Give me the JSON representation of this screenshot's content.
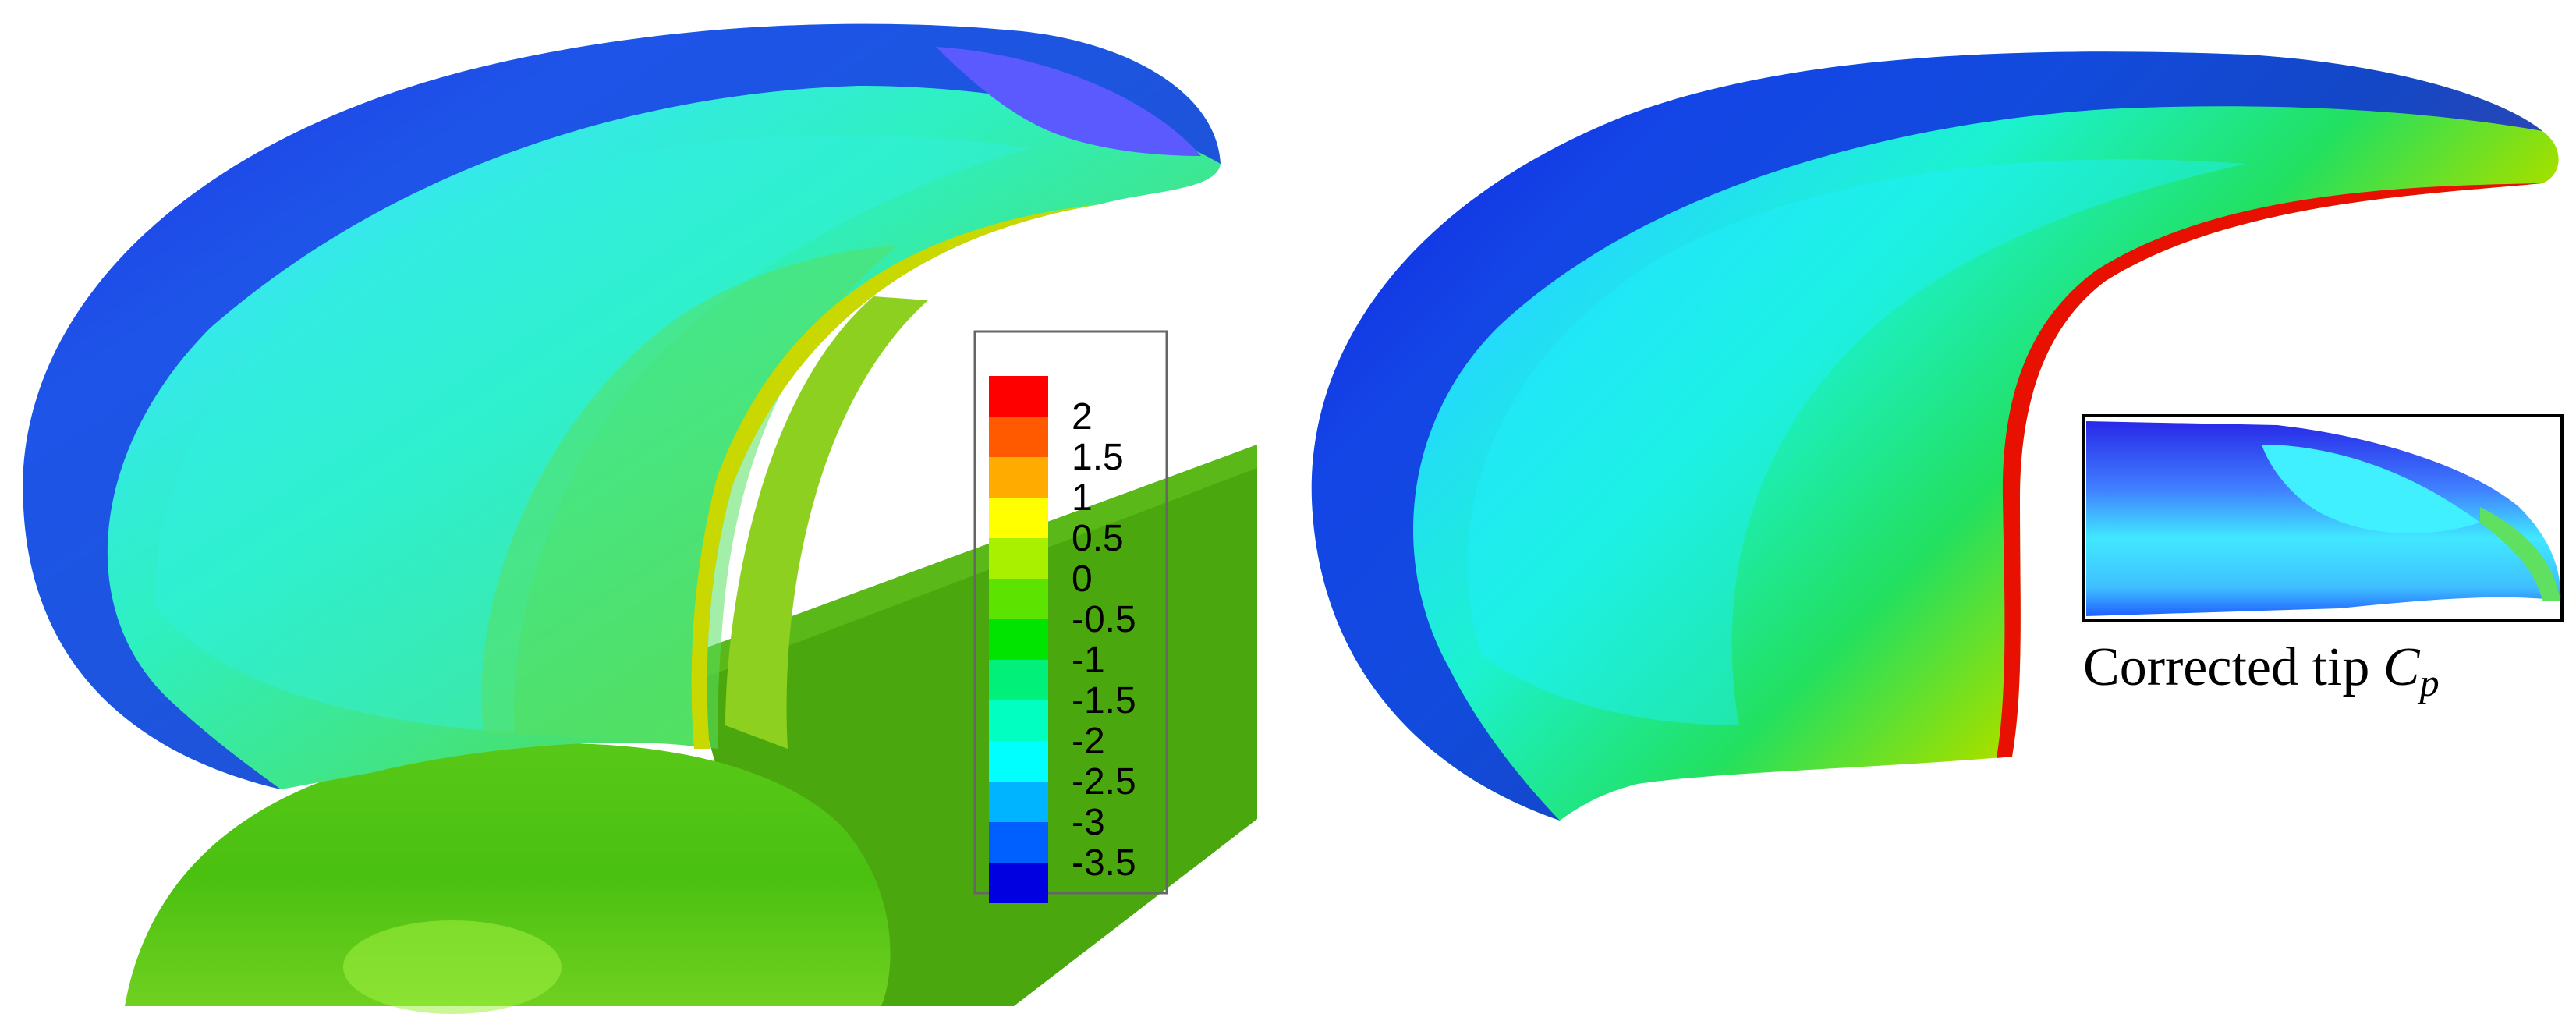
{
  "colors": {
    "red": "#ff0000",
    "orange_red": "#ff5a00",
    "orange": "#ffab00",
    "yellow": "#ffff00",
    "yellow_green": "#a8f000",
    "green_light": "#5ce400",
    "green": "#00e400",
    "green_teal": "#00f07a",
    "aqua_green": "#00ffc0",
    "cyan": "#00ffff",
    "sky_blue": "#00b4ff",
    "blue": "#0060ff",
    "deep_blue": "#0000e0"
  },
  "legend": {
    "labels": [
      "2",
      "1.5",
      "1",
      "0.5",
      "0",
      "-0.5",
      "-1",
      "-1.5",
      "-2",
      "-2.5",
      "-3",
      "-3.5"
    ],
    "swatches": [
      "#ff0000",
      "#ff5a00",
      "#ffab00",
      "#ffff00",
      "#a8f000",
      "#5ce400",
      "#00e400",
      "#00f07a",
      "#00ffc0",
      "#00ffff",
      "#00b4ff",
      "#0060ff",
      "#0000e0"
    ]
  },
  "inset": {
    "caption_main": "Corrected tip ",
    "caption_symbol": "C",
    "caption_subscript": "p"
  }
}
